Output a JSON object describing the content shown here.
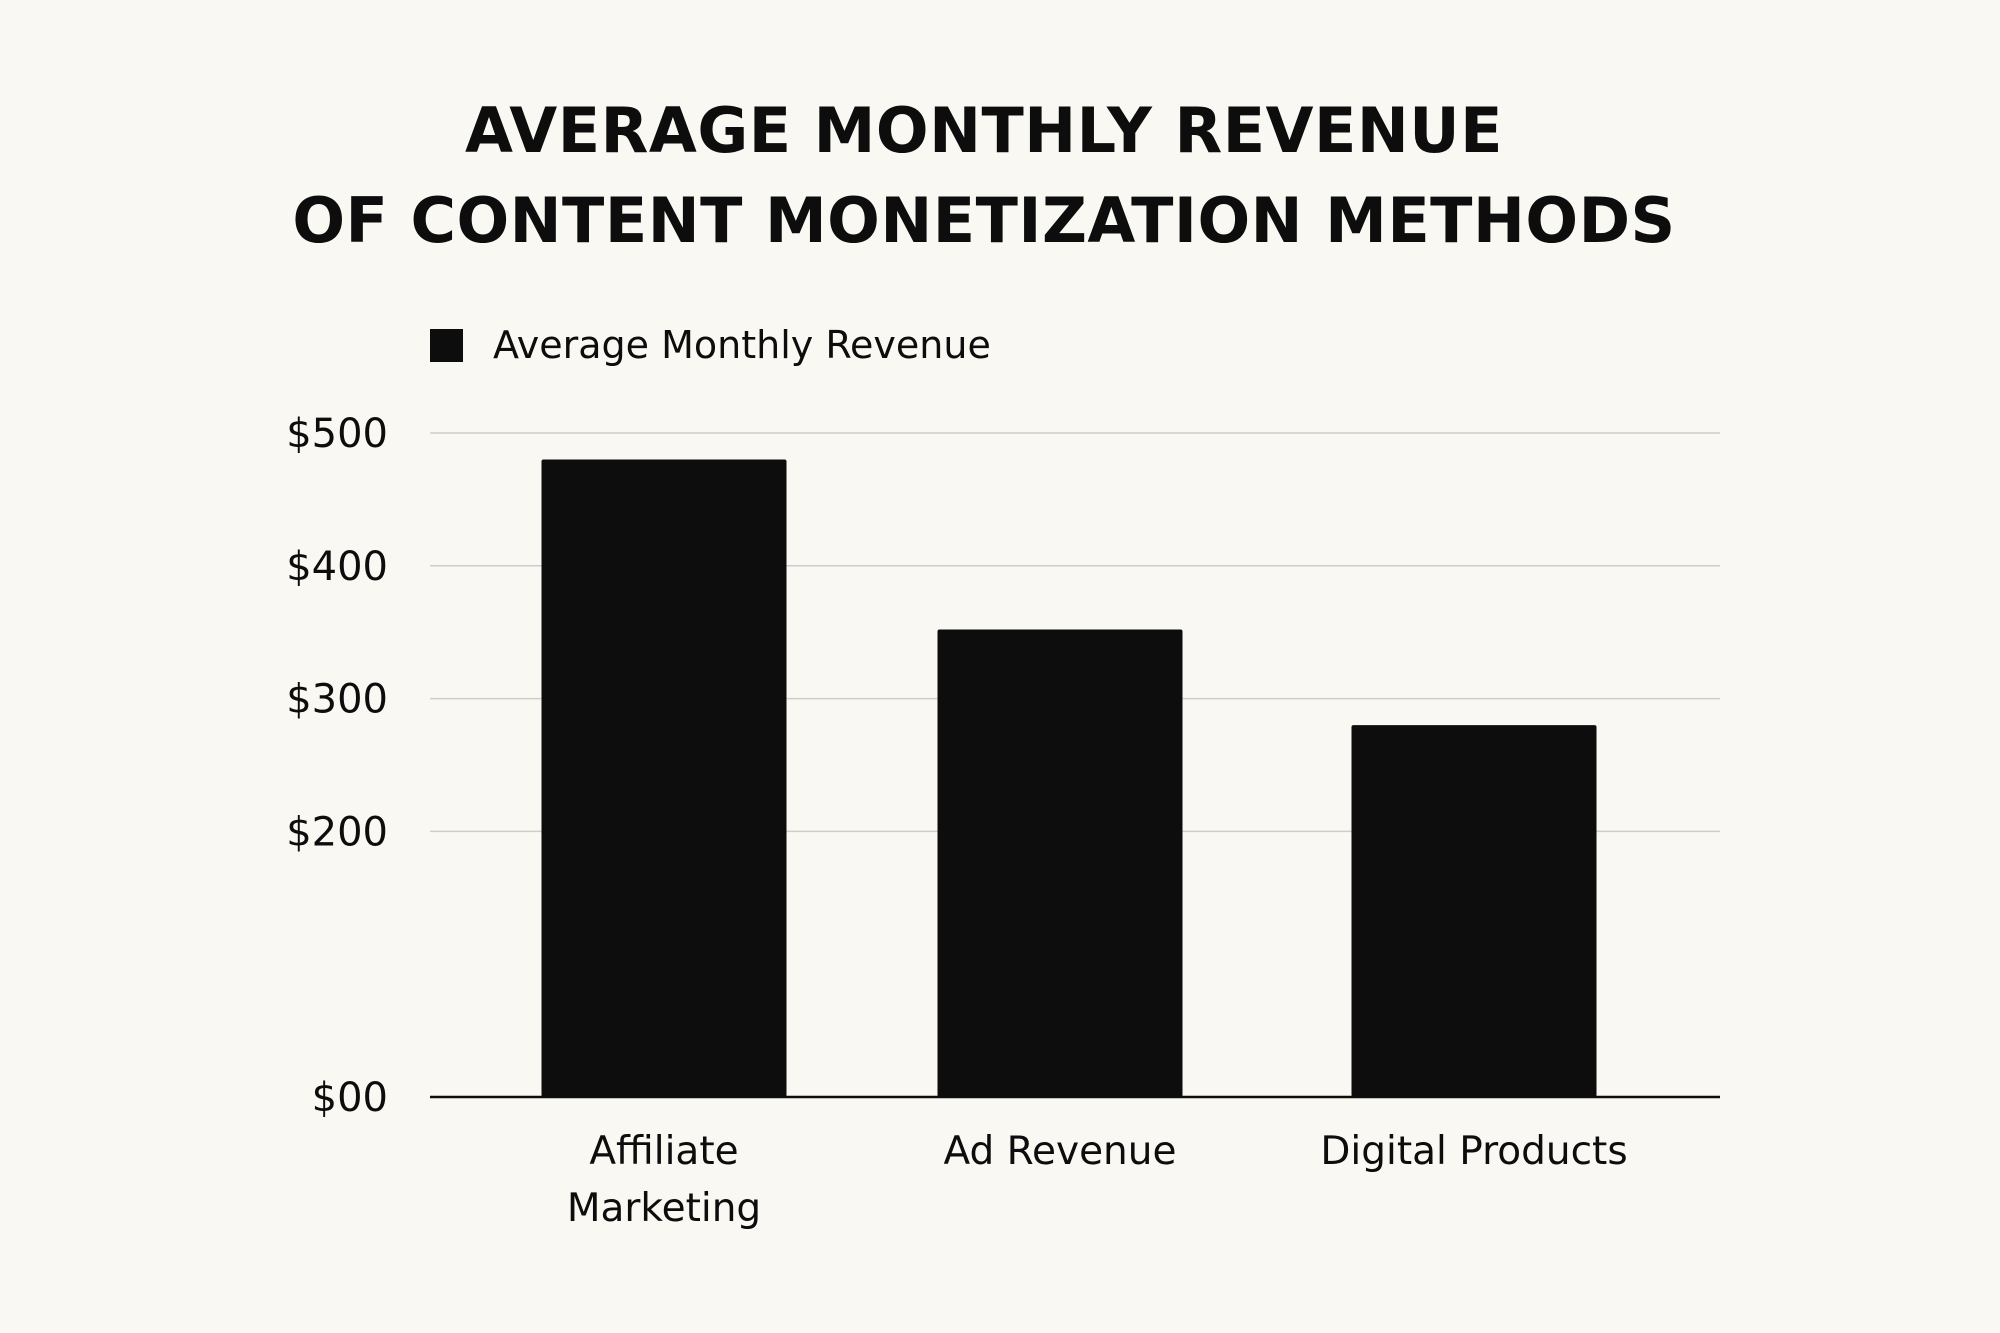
{
  "chart_data": {
    "type": "bar",
    "title_lines": [
      "AVERAGE MONTHLY REVENUE",
      "OF CONTENT MONETIZATION METHODS"
    ],
    "xlabel": "",
    "ylabel": "",
    "categories": [
      [
        "Affiliate",
        "Marketing"
      ],
      [
        "Ad Revenue"
      ],
      [
        "Digital Products"
      ]
    ],
    "series": [
      {
        "name": "Average Monthly Revenue",
        "color": "#0d0d0d",
        "values": [
          480,
          352,
          280
        ]
      }
    ],
    "ylim": [
      0,
      500
    ],
    "yticks": [
      0,
      200,
      300,
      400,
      500
    ],
    "ytick_labels": [
      "$00",
      "$200",
      "$300",
      "$400",
      "$500"
    ],
    "grid": true,
    "legend_position": "top-left"
  }
}
